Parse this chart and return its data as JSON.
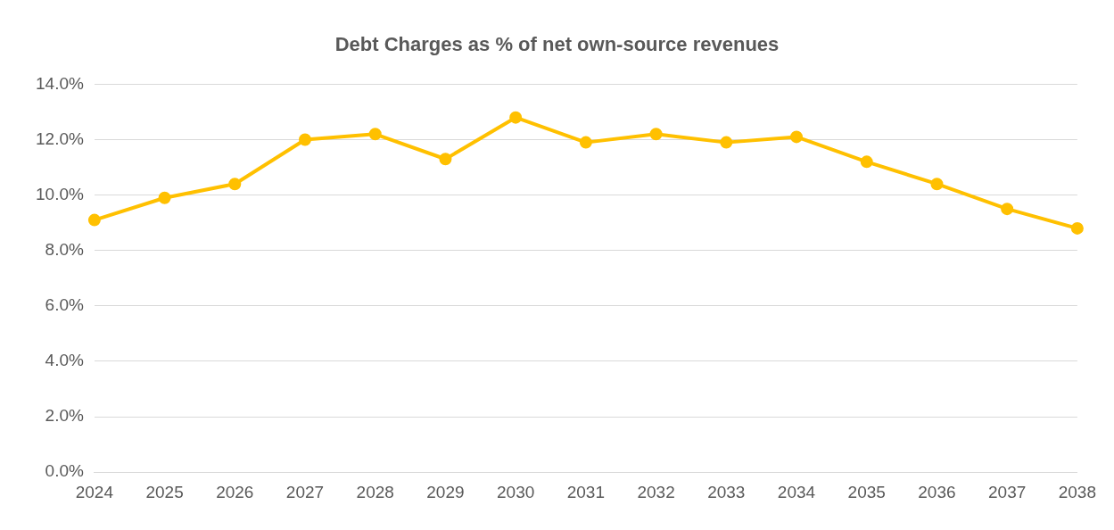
{
  "chart_data": {
    "type": "line",
    "title": "Debt Charges as % of net own-source revenues",
    "categories": [
      "2024",
      "2025",
      "2026",
      "2027",
      "2028",
      "2029",
      "2030",
      "2031",
      "2032",
      "2033",
      "2034",
      "2035",
      "2036",
      "2037",
      "2038"
    ],
    "series": [
      {
        "color": "#ffc000",
        "values": [
          9.1,
          9.9,
          10.4,
          12.0,
          12.2,
          11.3,
          12.8,
          11.9,
          12.2,
          11.9,
          12.1,
          11.2,
          10.4,
          9.5,
          8.8
        ]
      }
    ],
    "ylim": [
      0,
      14
    ],
    "yticks": [
      {
        "value": 0,
        "label": "0.0%"
      },
      {
        "value": 2,
        "label": "2.0%"
      },
      {
        "value": 4,
        "label": "4.0%"
      },
      {
        "value": 6,
        "label": "6.0%"
      },
      {
        "value": 8,
        "label": "8.0%"
      },
      {
        "value": 10,
        "label": "10.0%"
      },
      {
        "value": 12,
        "label": "12.0%"
      },
      {
        "value": 14,
        "label": "14.0%"
      }
    ],
    "grid": "y",
    "legend": false,
    "marker": "circle",
    "line_style": "solid"
  }
}
